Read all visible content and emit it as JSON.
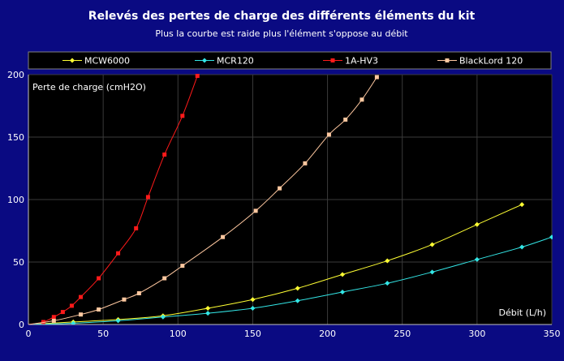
{
  "chart_data": {
    "type": "line",
    "title": "Relevés des pertes de charge des différents éléments du kit",
    "subtitle": "Plus la courbe est raide plus l'élément s'oppose au débit",
    "xlabel": "Débit (L/h)",
    "ylabel": "Perte de charge (cmH2O)",
    "xlim": [
      0,
      350
    ],
    "ylim": [
      0,
      200
    ],
    "x_ticks": [
      "0",
      "50",
      "100",
      "150",
      "200",
      "250",
      "300",
      "350"
    ],
    "y_ticks": [
      "0",
      "50",
      "100",
      "150",
      "200"
    ],
    "grid": true,
    "legend_position": "top",
    "background_color": "#0a0a82",
    "plot_background": "#000000",
    "grid_color": "#3a3a3a",
    "series": [
      {
        "name": "MCW6000",
        "color": "#ffff33",
        "marker": "diamond",
        "x": [
          0,
          30,
          60,
          90,
          120,
          150,
          180,
          210,
          240,
          270,
          300,
          330
        ],
        "y": [
          0,
          2,
          4,
          7,
          13,
          20,
          29,
          40,
          51,
          64,
          80,
          96
        ]
      },
      {
        "name": "MCR120",
        "color": "#33e6e6",
        "marker": "diamond",
        "x": [
          0,
          30,
          60,
          90,
          120,
          150,
          180,
          210,
          240,
          270,
          300,
          330,
          350
        ],
        "y": [
          0,
          1,
          3,
          6,
          9,
          13,
          19,
          26,
          33,
          42,
          52,
          62,
          70
        ]
      },
      {
        "name": "1A-HV3",
        "color": "#ff1a1a",
        "marker": "square",
        "x": [
          0,
          10,
          17,
          23,
          29,
          35,
          47,
          60,
          72,
          80,
          91,
          103,
          113
        ],
        "y": [
          0,
          2,
          6,
          10,
          15,
          22,
          37,
          57,
          77,
          102,
          136,
          167,
          199
        ]
      },
      {
        "name": "BlackLord 120",
        "color": "#ffc8a0",
        "marker": "square",
        "x": [
          0,
          17,
          35,
          47,
          64,
          74,
          91,
          103,
          130,
          152,
          168,
          185,
          201,
          212,
          223,
          233
        ],
        "y": [
          0,
          3,
          8,
          12,
          20,
          25,
          37,
          47,
          70,
          91,
          109,
          129,
          152,
          164,
          180,
          198
        ]
      }
    ]
  }
}
